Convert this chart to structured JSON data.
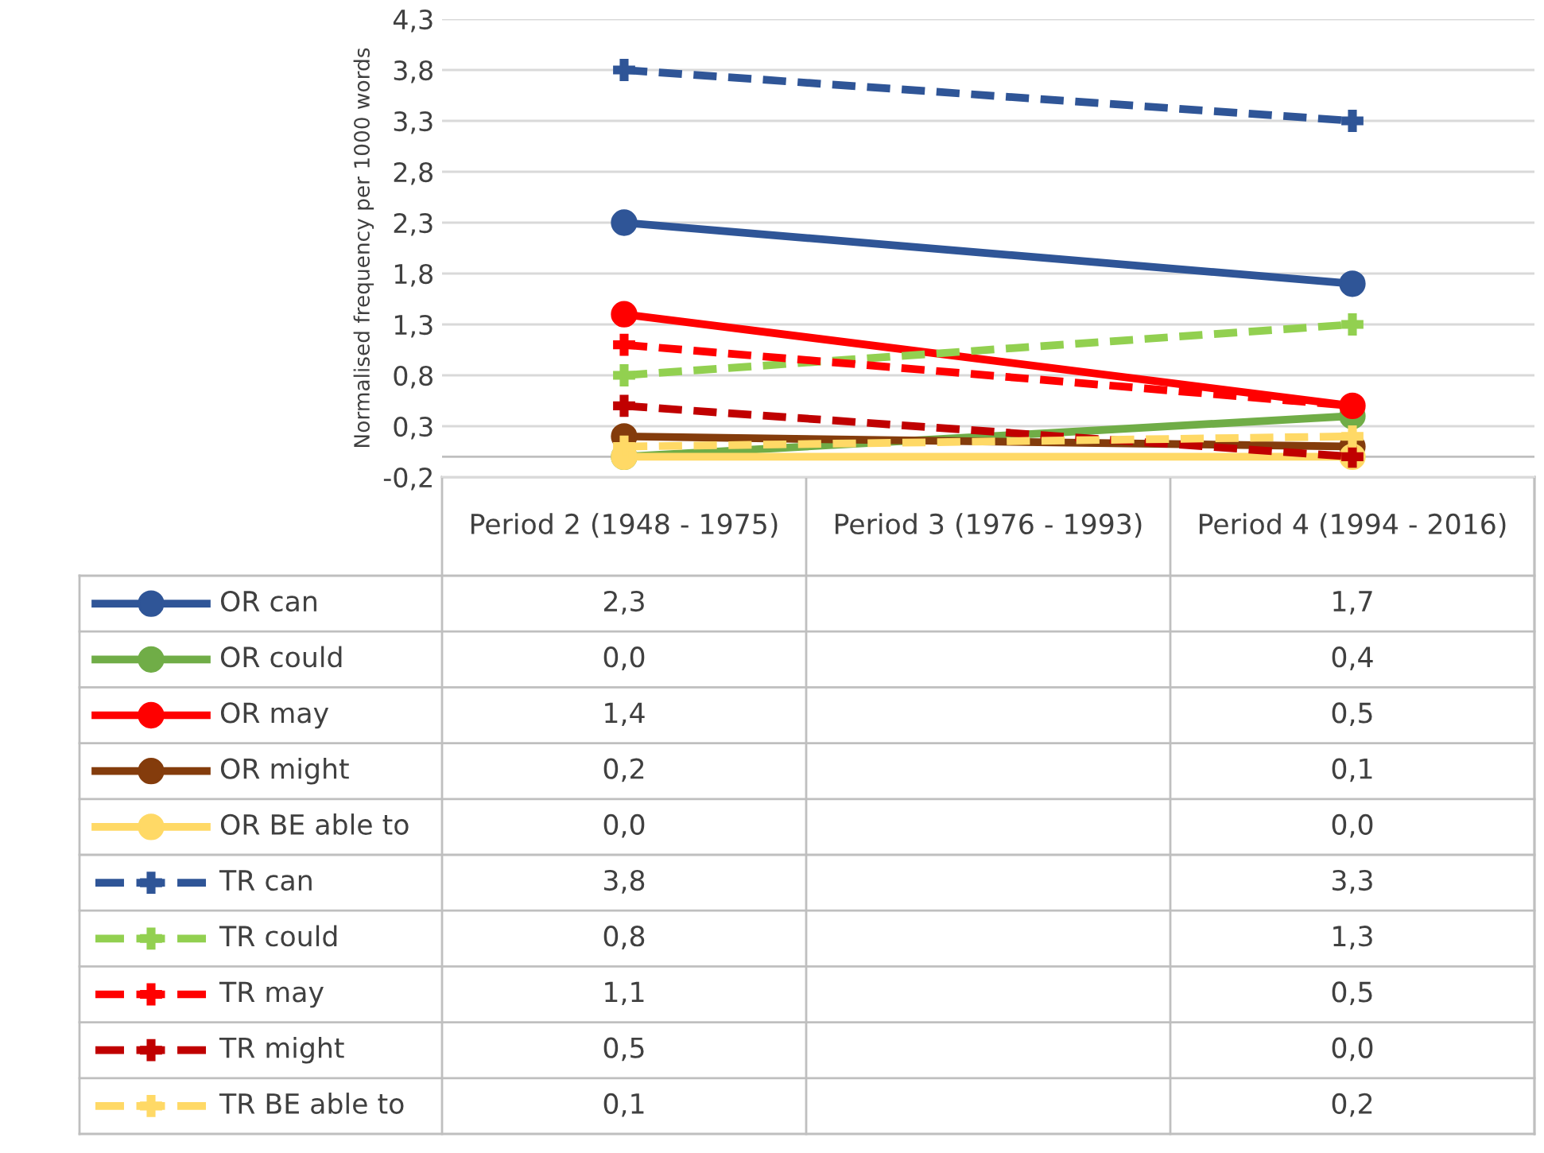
{
  "chart_data": {
    "type": "line",
    "ylabel": "Normalised frequency per 1000 words",
    "categories": [
      "Period 2 (1948 - 1975)",
      "Period 3 (1976 - 1993)",
      "Period 4 (1994 - 2016)"
    ],
    "series": [
      {
        "name": "OR can",
        "color": "#2f5597",
        "values": [
          2.3,
          null,
          1.7
        ],
        "value_labels": [
          "2,3",
          null,
          "1,7"
        ],
        "marker": "circle",
        "line_style": "solid"
      },
      {
        "name": "OR could",
        "color": "#70ad47",
        "values": [
          0.0,
          null,
          0.4
        ],
        "value_labels": [
          "0,0",
          null,
          "0,4"
        ],
        "marker": "circle",
        "line_style": "solid"
      },
      {
        "name": "OR may",
        "color": "#ff0000",
        "values": [
          1.4,
          null,
          0.5
        ],
        "value_labels": [
          "1,4",
          null,
          "0,5"
        ],
        "marker": "circle",
        "line_style": "solid"
      },
      {
        "name": "OR might",
        "color": "#843c0c",
        "values": [
          0.2,
          null,
          0.1
        ],
        "value_labels": [
          "0,2",
          null,
          "0,1"
        ],
        "marker": "circle",
        "line_style": "solid"
      },
      {
        "name": "OR BE able to",
        "color": "#ffd966",
        "values": [
          0.0,
          null,
          0.0
        ],
        "value_labels": [
          "0,0",
          null,
          "0,0"
        ],
        "marker": "circle",
        "line_style": "solid"
      },
      {
        "name": "TR can",
        "color": "#2f5597",
        "values": [
          3.8,
          null,
          3.3
        ],
        "value_labels": [
          "3,8",
          null,
          "3,3"
        ],
        "marker": "cross",
        "line_style": "dashed"
      },
      {
        "name": "TR could",
        "color": "#92d050",
        "values": [
          0.8,
          null,
          1.3
        ],
        "value_labels": [
          "0,8",
          null,
          "1,3"
        ],
        "marker": "cross",
        "line_style": "dashed"
      },
      {
        "name": "TR may",
        "color": "#ff0000",
        "values": [
          1.1,
          null,
          0.5
        ],
        "value_labels": [
          "1,1",
          null,
          "0,5"
        ],
        "marker": "cross",
        "line_style": "dashed"
      },
      {
        "name": "TR might",
        "color": "#c00000",
        "values": [
          0.5,
          null,
          0.0
        ],
        "value_labels": [
          "0,5",
          null,
          "0,0"
        ],
        "marker": "cross",
        "line_style": "dashed"
      },
      {
        "name": "TR BE able to",
        "color": "#ffd966",
        "values": [
          0.1,
          null,
          0.2
        ],
        "value_labels": [
          "0,1",
          null,
          "0,2"
        ],
        "marker": "cross",
        "line_style": "dashed"
      }
    ],
    "ylim": [
      -0.2,
      4.3
    ],
    "yticks": [
      {
        "value": -0.2,
        "label": "-0,2"
      },
      {
        "value": 0.3,
        "label": "0,3"
      },
      {
        "value": 0.8,
        "label": "0,8"
      },
      {
        "value": 1.3,
        "label": "1,3"
      },
      {
        "value": 1.8,
        "label": "1,8"
      },
      {
        "value": 2.3,
        "label": "2,3"
      },
      {
        "value": 2.8,
        "label": "2,8"
      },
      {
        "value": 3.3,
        "label": "3,3"
      },
      {
        "value": 3.8,
        "label": "3,8"
      },
      {
        "value": 4.3,
        "label": "4,3"
      }
    ],
    "grid": "y",
    "legend": "bottom"
  }
}
